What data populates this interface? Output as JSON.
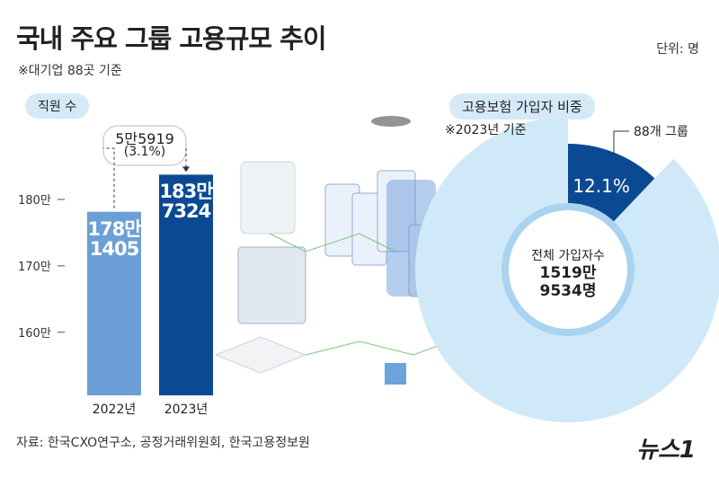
{
  "header": {
    "title": "국내 주요 그룹 고용규모 추이",
    "subtitle": "※대기업 88곳 기준",
    "unit": "단위: 명"
  },
  "chart_data": [
    {
      "type": "bar",
      "label": "직원 수",
      "categories": [
        "2022년",
        "2023년"
      ],
      "values": [
        1781405,
        1837324
      ],
      "value_labels": [
        "178만 1405",
        "183만 7324"
      ],
      "colors": [
        "#6b9fd6",
        "#0b4a93"
      ],
      "ylim": [
        1505000,
        1965000
      ],
      "yticks": [
        {
          "value": 1600000,
          "label": "160만"
        },
        {
          "value": 1700000,
          "label": "170만"
        },
        {
          "value": 1800000,
          "label": "180만"
        }
      ],
      "annotations": [
        "5만5919",
        "(3.1%)"
      ]
    },
    {
      "type": "pie",
      "title": "고용보험 가입자 비중",
      "subtitle": "※2023년 기준",
      "categories": [
        "88개 그룹",
        null
      ],
      "values": [
        12.1,
        87.9
      ],
      "value_labels": [
        "12.1%",
        null
      ],
      "colors": [
        "#0b4a93",
        "#cfe9f8"
      ],
      "center_label": "전체 가입자수",
      "center_value": "1519만 9534명"
    }
  ],
  "source": "자료: 한국CXO연구소, 공정거래위원회, 한국고용정보원",
  "logo": "뉴스1"
}
